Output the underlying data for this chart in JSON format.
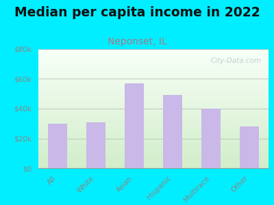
{
  "title": "Median per capita income in 2022",
  "subtitle": "Neponset, IL",
  "categories": [
    "All",
    "White",
    "Asian",
    "Hispanic",
    "Multirace",
    "Other"
  ],
  "values": [
    30000,
    31000,
    57000,
    49000,
    40000,
    28000
  ],
  "bar_color": "#c9b8e8",
  "title_fontsize": 13.5,
  "subtitle_fontsize": 10,
  "title_color": "#111111",
  "subtitle_color": "#aa7788",
  "tick_label_color": "#888888",
  "background_outer": "#00eeff",
  "ylim": [
    0,
    80000
  ],
  "yticks": [
    0,
    20000,
    40000,
    60000,
    80000
  ],
  "ytick_labels": [
    "$0",
    "$20k",
    "$40k",
    "$60k",
    "$80k"
  ],
  "watermark": "City-Data.com"
}
